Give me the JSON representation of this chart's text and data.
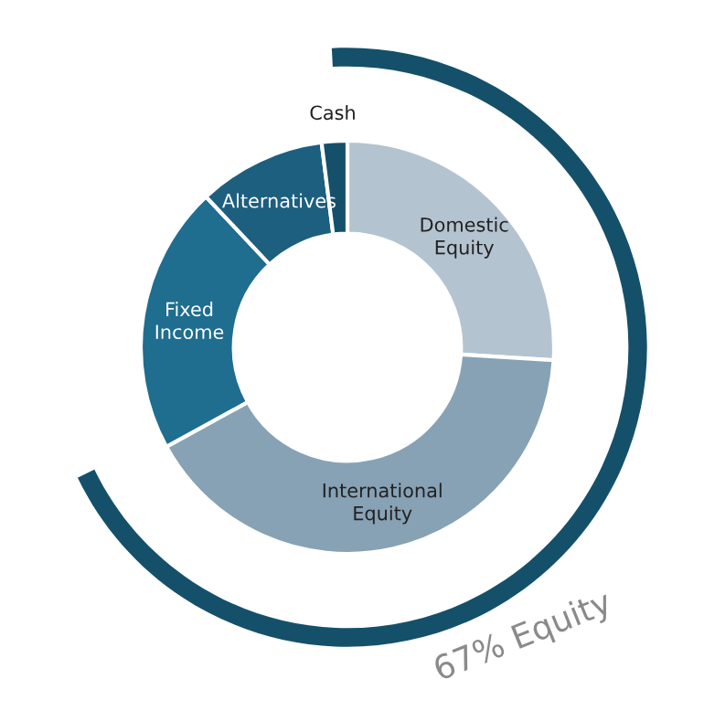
{
  "chart_data": {
    "type": "donut",
    "categories": [
      "Domestic\nEquity",
      "International\nEquity",
      "Fixed\nIncome",
      "Alternatives",
      "Cash"
    ],
    "values": [
      26,
      41,
      21,
      10,
      2
    ],
    "colors": [
      "#b4c3d0",
      "#87a2b5",
      "#1f6d8f",
      "#1d5f7e",
      "#15506b"
    ],
    "annotations": [
      "67% Equity"
    ]
  }
}
